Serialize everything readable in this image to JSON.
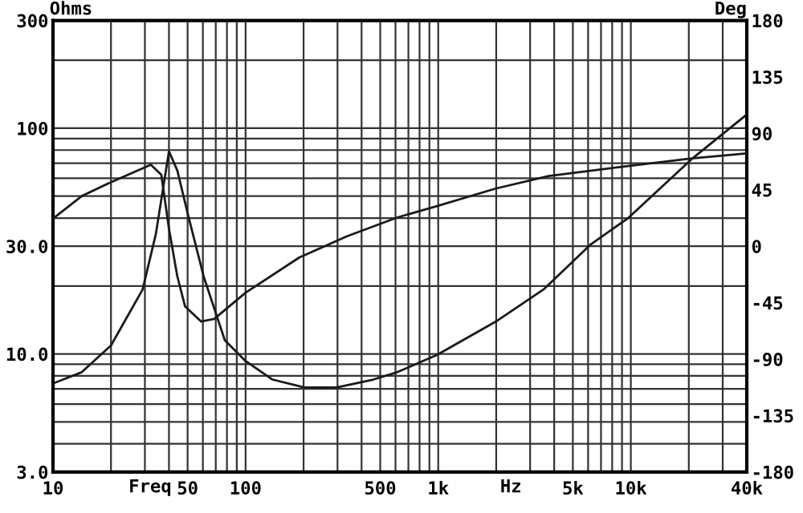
{
  "chart_data": {
    "type": "line",
    "xlabel": "Freq",
    "ylabel": "Ohms",
    "y2label": "Deg",
    "annotations": [
      "Hz"
    ],
    "log": "xy",
    "grid": true,
    "marker": "none",
    "line_style": "solid",
    "xlim": [
      10,
      40000
    ],
    "xticks": [
      10,
      50,
      100,
      500,
      {
        "value": 1000,
        "label": "1k"
      },
      {
        "value": 5000,
        "label": "5k"
      },
      {
        "value": 10000,
        "label": "10k"
      },
      {
        "value": 40000,
        "label": "40k"
      }
    ],
    "ylim": [
      3,
      300
    ],
    "yticks": [
      {
        "value": 3,
        "label": "3.0"
      },
      {
        "value": 10,
        "label": "10.0"
      },
      {
        "value": 30,
        "label": "30.0"
      },
      100,
      300
    ],
    "y2lim": [
      -180,
      180
    ],
    "y2ticks": [
      -180,
      -135,
      -90,
      -45,
      0,
      45,
      90,
      135,
      180
    ],
    "series": [
      {
        "color": "#1a1a1a",
        "x": [
          10,
          14.1,
          20,
          29.2,
          34.2,
          40,
          44.2,
          50,
          60.6,
          78,
          100,
          138,
          202,
          297,
          460,
          612,
          986,
          1987,
          3520,
          6200,
          9690,
          20700,
          40000
        ],
        "values": [
          7.4,
          8.3,
          10.9,
          19.3,
          34,
          79,
          65,
          42,
          22,
          11.5,
          9.3,
          7.7,
          7.1,
          7.1,
          7.7,
          8.3,
          9.9,
          13.9,
          19.3,
          30.6,
          40,
          73,
          115
        ]
      },
      {
        "color": "#1a1a1a",
        "axis": "y2",
        "x": [
          10,
          14.1,
          19.3,
          32.2,
          36.5,
          40,
          44.2,
          48.5,
          58.7,
          68.7,
          100,
          190,
          336,
          614,
          986,
          1987,
          3740,
          9690,
          20700,
          40000
        ],
        "values": [
          22,
          40,
          50,
          65,
          57,
          14,
          -24,
          -48,
          -60,
          -58,
          -37,
          -9,
          8,
          23,
          32,
          46,
          56,
          64,
          70,
          74
        ]
      }
    ]
  }
}
